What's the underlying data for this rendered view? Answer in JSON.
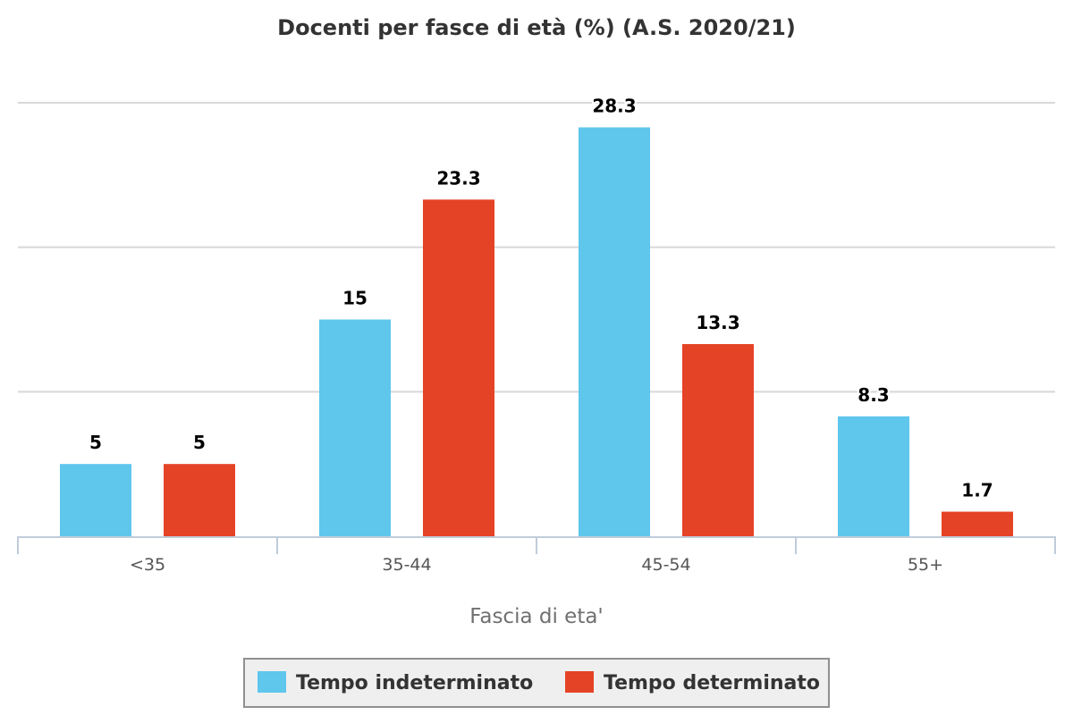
{
  "chart_data": {
    "type": "bar",
    "title": "Docenti per fasce di età (%) (A.S. 2020/21)",
    "xlabel": "Fascia di eta'",
    "ylabel": "",
    "categories": [
      "<35",
      "35-44",
      "45-54",
      "55+"
    ],
    "series": [
      {
        "name": "Tempo indeterminato",
        "color": "#5fc6ec",
        "values": [
          5,
          15,
          28.3,
          8.3
        ]
      },
      {
        "name": "Tempo determinato",
        "color": "#e54326",
        "values": [
          5,
          23.3,
          13.3,
          1.7
        ]
      }
    ],
    "ylim": [
      0,
      30
    ],
    "grid": true,
    "legend_position": "bottom-center",
    "grid_color": "#d8d8d8",
    "axis_color": "#c0ccda"
  }
}
